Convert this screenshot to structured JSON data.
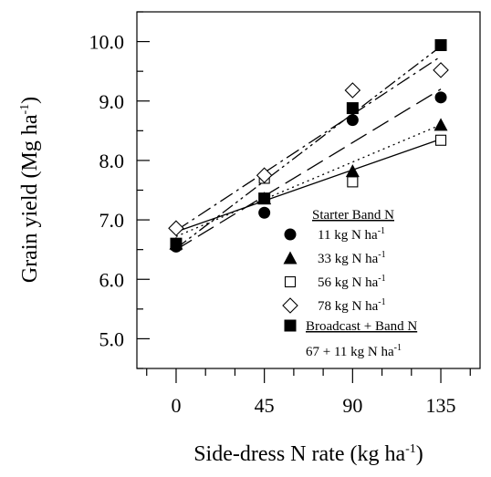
{
  "chart_data": {
    "type": "scatter",
    "xlabel": "Side-dress N rate (kg ha",
    "xlabel_sup": "-1",
    "xlabel_end": ")",
    "ylabel": "Grain yield (Mg ha",
    "ylabel_sup": "-1",
    "ylabel_end": ")",
    "xlim": [
      -20,
      155
    ],
    "ylim": [
      4.5,
      10.5
    ],
    "x_ticks": [
      0,
      45,
      90,
      135
    ],
    "x_tick_labels": [
      "0",
      "45",
      "90",
      "135"
    ],
    "y_ticks": [
      5.0,
      6.0,
      7.0,
      8.0,
      9.0,
      10.0
    ],
    "y_tick_labels": [
      "5.0",
      "6.0",
      "7.0",
      "8.0",
      "9.0",
      "10.0"
    ],
    "legend": {
      "placement": "bottom-right",
      "heading": "Starter Band N",
      "heading2": "Broadcast + Band N",
      "heading2_note": "67 + 11 kg N ha",
      "heading2_note_sup": "-1"
    },
    "series": [
      {
        "name": "11 kg N ha",
        "name_sup": "-1",
        "marker": "filled-circle",
        "line": "long-dash",
        "x": [
          0,
          45,
          90,
          135
        ],
        "y": [
          6.55,
          7.12,
          8.68,
          9.06
        ],
        "fit": [
          6.5,
          9.2
        ]
      },
      {
        "name": "33 kg N ha",
        "name_sup": "-1",
        "marker": "filled-triangle",
        "line": "solid",
        "x": [
          0,
          45,
          90,
          135
        ],
        "y": [
          6.6,
          7.36,
          7.82,
          8.6
        ],
        "fit": [
          6.8,
          8.36
        ]
      },
      {
        "name": "56 kg N ha",
        "name_sup": "-1",
        "marker": "open-square",
        "line": "dotted",
        "x": [
          0,
          45,
          90,
          135
        ],
        "y": [
          6.58,
          7.7,
          7.64,
          8.34
        ],
        "fit": [
          6.72,
          8.6
        ]
      },
      {
        "name": "78 kg N ha",
        "name_sup": "-1",
        "marker": "open-diamond",
        "line": "dash-dot",
        "x": [
          0,
          45,
          90,
          135
        ],
        "y": [
          6.86,
          7.75,
          9.18,
          9.52
        ],
        "fit": [
          6.82,
          9.75
        ]
      },
      {
        "name": "",
        "marker": "filled-square",
        "line": "dash-dot-dot",
        "x": [
          0,
          45,
          90,
          135
        ],
        "y": [
          6.6,
          7.36,
          8.88,
          9.94
        ],
        "fit": [
          6.52,
          9.92
        ]
      }
    ]
  }
}
